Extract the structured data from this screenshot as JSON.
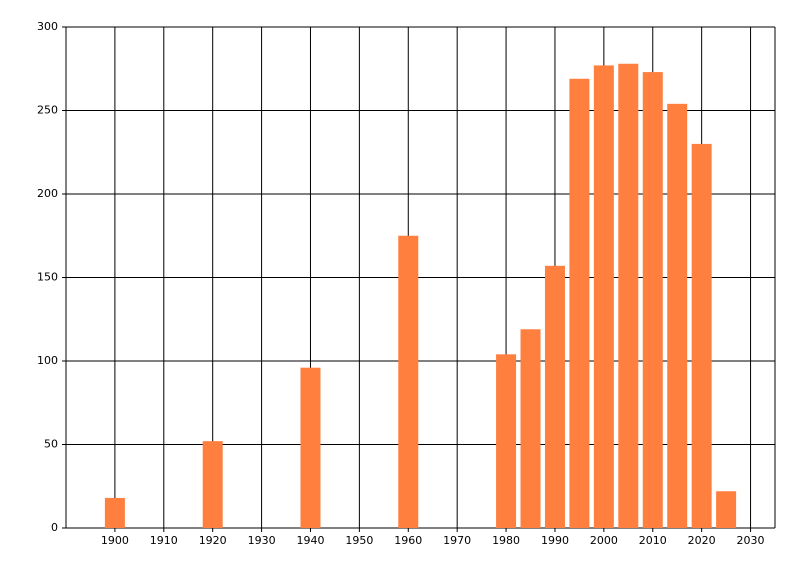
{
  "chart_data": {
    "type": "bar",
    "x": [
      1900,
      1920,
      1940,
      1960,
      1980,
      1985,
      1990,
      1995,
      2000,
      2005,
      2010,
      2015,
      2020,
      2025
    ],
    "values": [
      18,
      52,
      96,
      175,
      104,
      119,
      157,
      269,
      277,
      278,
      273,
      254,
      230,
      22
    ],
    "color": "#ff7f3f",
    "xlim": [
      1890,
      2035
    ],
    "xticks": [
      1900,
      1910,
      1920,
      1930,
      1940,
      1950,
      1960,
      1970,
      1980,
      1990,
      2000,
      2010,
      2020,
      2030
    ],
    "ylim": [
      0,
      300
    ],
    "yticks": [
      0,
      50,
      100,
      150,
      200,
      250,
      300
    ],
    "grid": true
  }
}
